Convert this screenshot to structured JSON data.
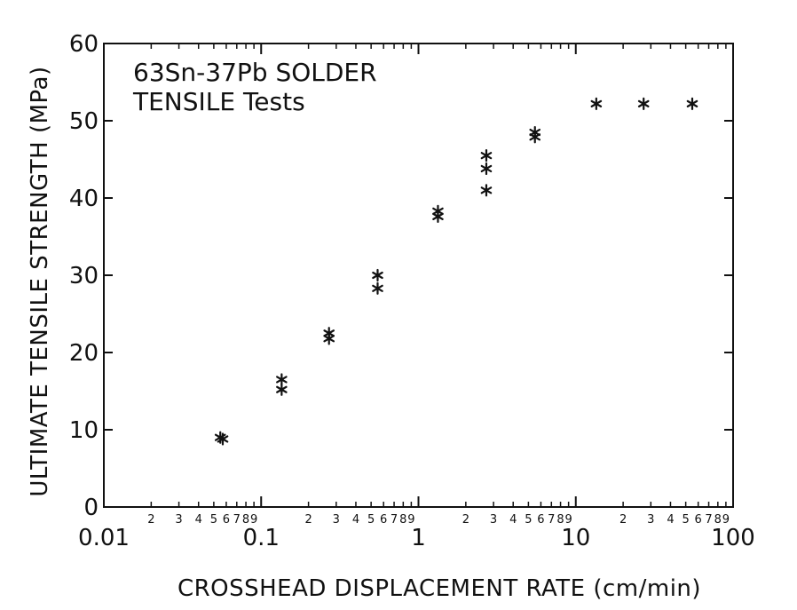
{
  "chart_data": {
    "type": "scatter",
    "title": "",
    "annotation": [
      "63Sn-37Pb SOLDER",
      "TENSILE Tests"
    ],
    "xlabel": "CROSSHEAD DISPLACEMENT RATE (cm/min)",
    "ylabel": "ULTIMATE TENSILE STRENGTH (MPa)",
    "xscale": "log",
    "xlim": [
      0.01,
      100
    ],
    "ylim": [
      0,
      60
    ],
    "x_major_ticks": [
      {
        "value": 0.01,
        "label": "0.01"
      },
      {
        "value": 0.1,
        "label": "0.1"
      },
      {
        "value": 1,
        "label": "1"
      },
      {
        "value": 10,
        "label": "10"
      },
      {
        "value": 100,
        "label": "100"
      }
    ],
    "x_minor_digits": [
      "2",
      "3",
      "4",
      "5",
      "6",
      "7",
      "8",
      "9"
    ],
    "y_ticks": [
      0,
      10,
      20,
      30,
      40,
      50,
      60
    ],
    "grid": false,
    "marker": "*",
    "series": [
      {
        "points": [
          [
            0.055,
            9.0
          ],
          [
            0.057,
            8.8
          ],
          [
            0.135,
            16.5
          ],
          [
            0.135,
            15.2
          ],
          [
            0.27,
            22.5
          ],
          [
            0.27,
            21.8
          ],
          [
            0.55,
            30.0
          ],
          [
            0.55,
            28.3
          ],
          [
            1.33,
            38.3
          ],
          [
            1.33,
            37.6
          ],
          [
            2.7,
            45.5
          ],
          [
            2.7,
            43.8
          ],
          [
            2.7,
            41.0
          ],
          [
            5.5,
            48.5
          ],
          [
            5.5,
            47.9
          ],
          [
            13.5,
            52.2
          ],
          [
            27,
            52.2
          ],
          [
            55,
            52.2
          ]
        ]
      }
    ]
  }
}
